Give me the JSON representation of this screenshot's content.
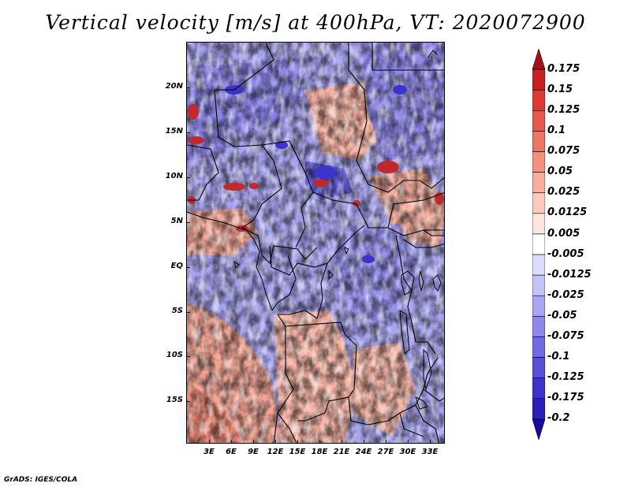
{
  "title": "Vertical velocity [m/s] at 400hPa, VT: 2020072900",
  "footer": "GrADS: IGES/COLA",
  "lat_labels": [
    "20N",
    "15N",
    "10N",
    "5N",
    "EQ",
    "5S",
    "10S",
    "15S"
  ],
  "lon_labels": [
    "3E",
    "6E",
    "9E",
    "12E",
    "15E",
    "18E",
    "21E",
    "24E",
    "27E",
    "30E",
    "33E"
  ],
  "colorbar": {
    "labels": [
      "0.175",
      "0.15",
      "0.125",
      "0.1",
      "0.075",
      "0.05",
      "0.025",
      "0.0125",
      "0.005",
      "-0.005",
      "-0.0125",
      "-0.025",
      "-0.05",
      "-0.075",
      "-0.1",
      "-0.125",
      "-0.175",
      "-0.2"
    ],
    "colors": [
      "#a50f15",
      "#c81e24",
      "#de3a35",
      "#e9574c",
      "#ef7464",
      "#f3917f",
      "#f7ae9d",
      "#fbcbbe",
      "#fde4dc",
      "#ffffff",
      "#dedcfb",
      "#c5c2f7",
      "#a9a5f1",
      "#8d88ea",
      "#716be2",
      "#564fd8",
      "#3c33cc",
      "#2a1fb8",
      "#1b0aa0"
    ]
  }
}
